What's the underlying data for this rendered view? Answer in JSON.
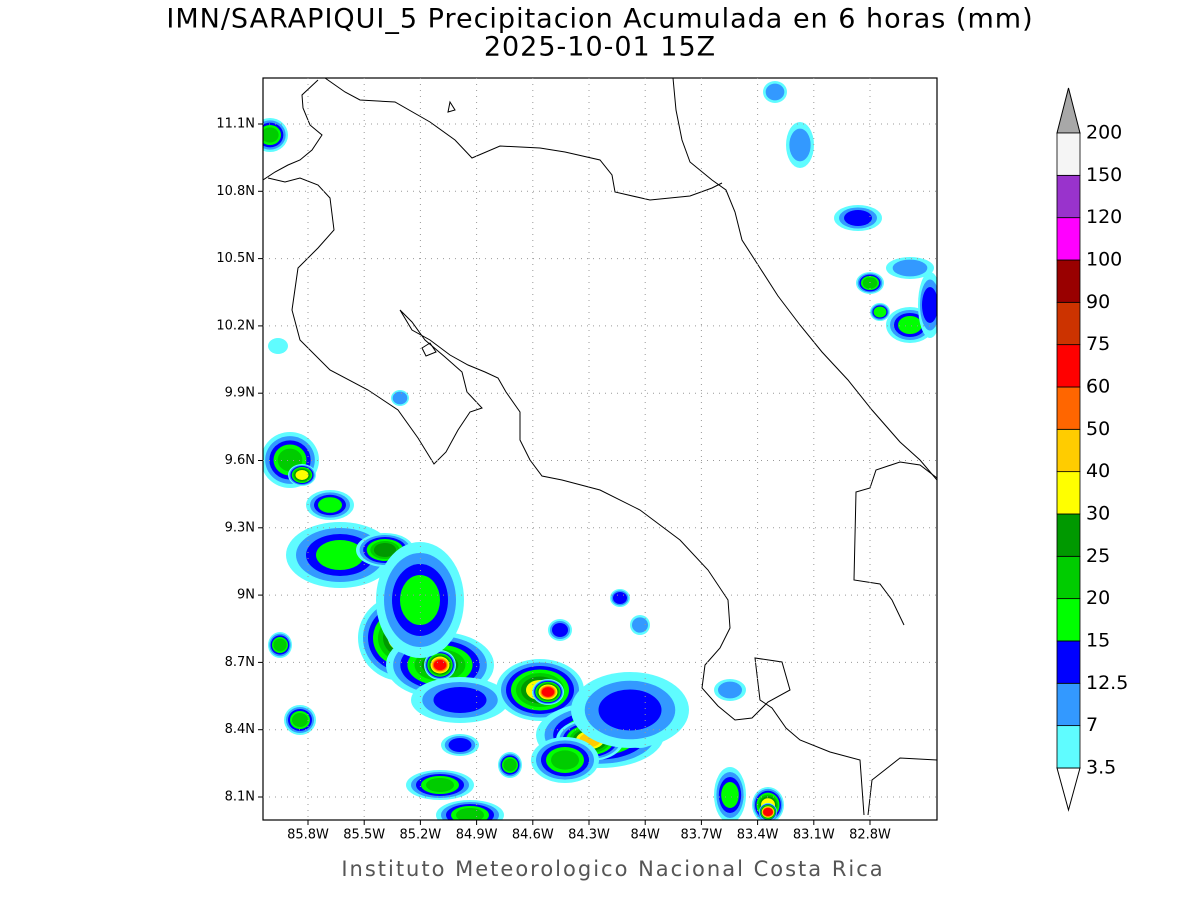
{
  "header": {
    "title": "IMN/SARAPIQUI_5 Precipitacion Acumulada en 6 horas (mm)",
    "subtitle": "2025-10-01 15Z"
  },
  "map": {
    "lat_labels": [
      "11.1N",
      "10.8N",
      "10.5N",
      "10.2N",
      "9.9N",
      "9.6N",
      "9.3N",
      "9N",
      "8.7N",
      "8.4N",
      "8.1N"
    ],
    "lon_labels": [
      "85.8W",
      "85.5W",
      "85.2W",
      "84.9W",
      "84.6W",
      "84.3W",
      "84W",
      "83.7W",
      "83.4W",
      "83.1W",
      "82.8W"
    ]
  },
  "legend": {
    "levels": [
      "3.5",
      "7",
      "12.5",
      "15",
      "20",
      "25",
      "30",
      "40",
      "50",
      "60",
      "75",
      "90",
      "100",
      "120",
      "150",
      "200"
    ],
    "colors": [
      "#5ffcff",
      "#3399ff",
      "#0000ff",
      "#00ff00",
      "#00cc00",
      "#009900",
      "#ffff00",
      "#ffcc00",
      "#ff6600",
      "#ff0000",
      "#cc3300",
      "#990000",
      "#ff00ff",
      "#9933cc",
      "#f5f5f5"
    ],
    "under_color": "#ffffff",
    "over_color": "#a8a8a8"
  },
  "footer": "Instituto Meteorologico Nacional Costa Rica"
}
